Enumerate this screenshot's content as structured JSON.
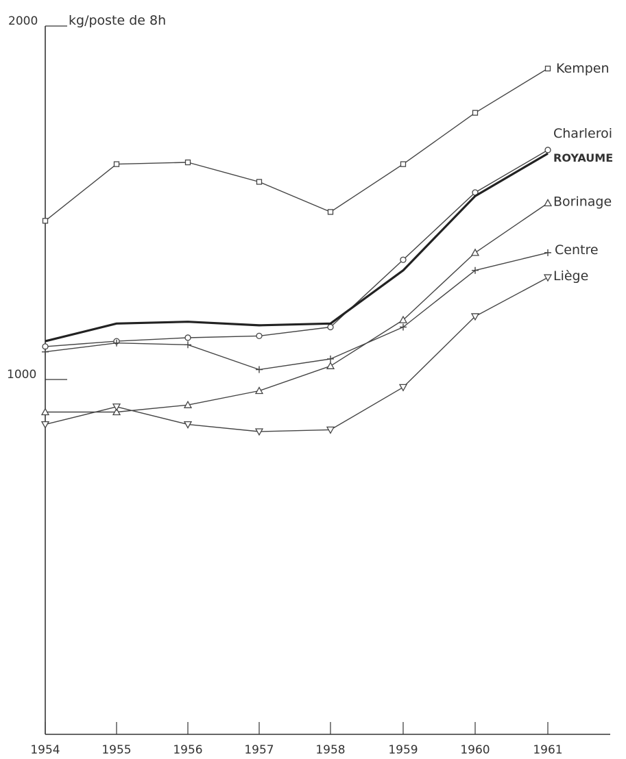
{
  "chart_data": {
    "type": "line",
    "y_unit": "kg/poste de 8h",
    "x": [
      "1954",
      "1955",
      "1956",
      "1957",
      "1958",
      "1959",
      "1960",
      "1961"
    ],
    "ylim": [
      0,
      2000
    ],
    "y_ticks": [
      "1000",
      "2000"
    ],
    "grid": false,
    "series": [
      {
        "name": "Kempen",
        "marker": "square",
        "values": [
          1450,
          1610,
          1615,
          1560,
          1475,
          1610,
          1755,
          1880
        ]
      },
      {
        "name": "Charleroi",
        "marker": "circle",
        "values": [
          1095,
          1110,
          1120,
          1125,
          1150,
          1340,
          1530,
          1650
        ]
      },
      {
        "name": "ROYAUME",
        "marker": "none",
        "bold": true,
        "values": [
          1110,
          1160,
          1165,
          1155,
          1160,
          1310,
          1520,
          1640
        ]
      },
      {
        "name": "Borinage",
        "marker": "triangle-up",
        "values": [
          910,
          910,
          930,
          970,
          1040,
          1170,
          1360,
          1500
        ]
      },
      {
        "name": "Centre",
        "marker": "plus",
        "values": [
          1080,
          1105,
          1100,
          1030,
          1060,
          1150,
          1310,
          1360
        ]
      },
      {
        "name": "Liège",
        "marker": "triangle-down",
        "values": [
          875,
          925,
          875,
          855,
          860,
          980,
          1180,
          1290
        ]
      }
    ]
  }
}
